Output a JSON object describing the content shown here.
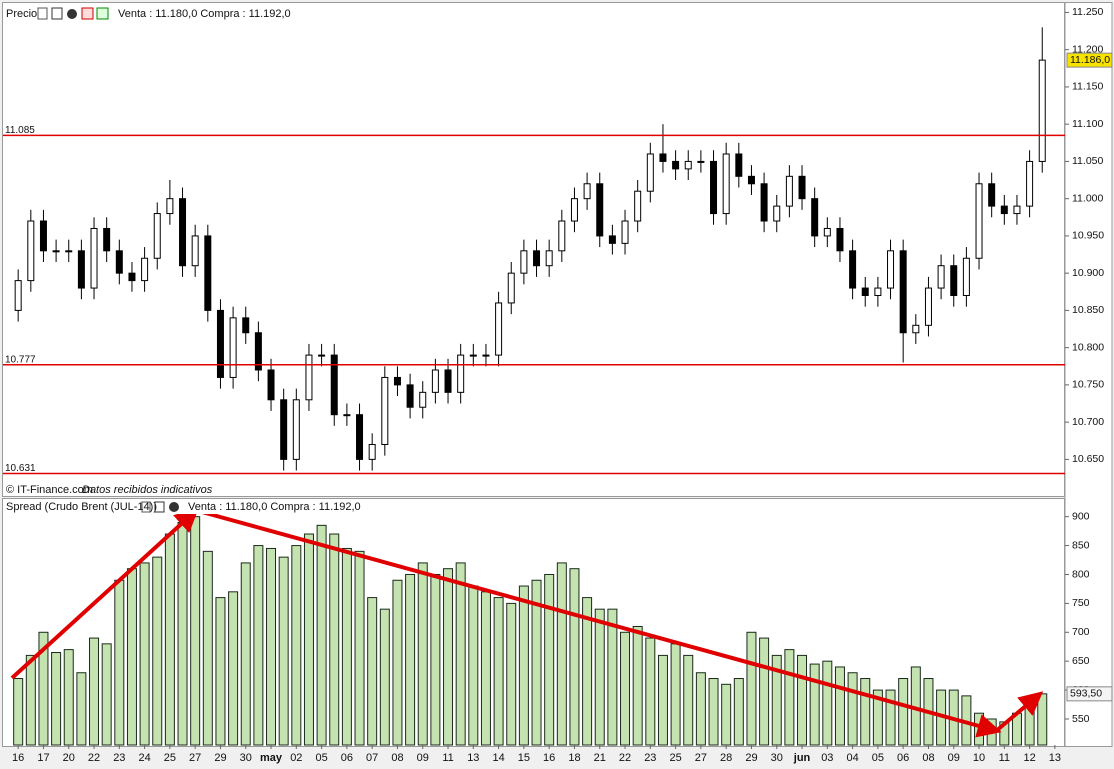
{
  "chart_data": [
    {
      "type": "candlestick",
      "title": "Precio",
      "quote": "Venta : 11.180,0 Compra : 11.192,0",
      "source": "© IT-Finance.com",
      "note": "Datos recibidos indicativos",
      "x": [
        0,
        0.5,
        1,
        1.5,
        2,
        2.5,
        3,
        3.5,
        4,
        4.5,
        5,
        5.5,
        6,
        6.5,
        7,
        7.5,
        8,
        8.5,
        9,
        9.5,
        10,
        10.5,
        11,
        11.5,
        12,
        12.5,
        13,
        13.5,
        14,
        14.5,
        15,
        15.5,
        16,
        16.5,
        17,
        17.5,
        18,
        18.5,
        19,
        19.5,
        20,
        20.5,
        21,
        21.5,
        22,
        22.5,
        23,
        23.5,
        24,
        24.5,
        25,
        25.5,
        26,
        26.5,
        27,
        27.5,
        28,
        28.5,
        29,
        29.5,
        30,
        30.5,
        31,
        31.5,
        32,
        32.5,
        33,
        33.5,
        34,
        34.5,
        35,
        35.5,
        36,
        36.5,
        37,
        37.5,
        38,
        38.5,
        39,
        39.5,
        40,
        40.5
      ],
      "open": [
        10850,
        10890,
        10970,
        10930,
        10930,
        10930,
        10880,
        10960,
        10930,
        10900,
        10890,
        10920,
        10980,
        11000,
        10910,
        10950,
        10850,
        10760,
        10840,
        10820,
        10770,
        10730,
        10650,
        10730,
        10790,
        10790,
        10710,
        10710,
        10650,
        10670,
        10760,
        10750,
        10720,
        10740,
        10770,
        10740,
        10790,
        10790,
        10790,
        10860,
        10900,
        10930,
        10910,
        10930,
        10970,
        11000,
        11020,
        10950,
        10940,
        10970,
        11010,
        11060,
        11050,
        11040,
        11050,
        11050,
        10980,
        11060,
        11030,
        11020,
        10970,
        10990,
        11030,
        11000,
        10950,
        10960,
        10930,
        10880,
        10870,
        10880,
        10930,
        10820,
        10830,
        10880,
        10910,
        10870,
        10920,
        11020,
        10990,
        10980,
        10990,
        11050
      ],
      "high": [
        10905,
        10985,
        10985,
        10945,
        10945,
        10945,
        10975,
        10975,
        10945,
        10915,
        10935,
        10995,
        11025,
        11015,
        10965,
        10965,
        10865,
        10855,
        10855,
        10835,
        10785,
        10745,
        10745,
        10805,
        10805,
        10805,
        10725,
        10725,
        10685,
        10775,
        10775,
        10765,
        10755,
        10785,
        10785,
        10805,
        10805,
        10805,
        10875,
        10915,
        10945,
        10945,
        10945,
        10985,
        11015,
        11035,
        11035,
        10965,
        10985,
        11025,
        11075,
        11100,
        11065,
        11065,
        11065,
        11065,
        11075,
        11075,
        11045,
        11035,
        11005,
        11045,
        11045,
        11015,
        10975,
        10975,
        10945,
        10895,
        10895,
        10945,
        10945,
        10845,
        10895,
        10925,
        10925,
        10935,
        11035,
        11035,
        11005,
        11005,
        11065,
        11230
      ],
      "low": [
        10835,
        10875,
        10915,
        10915,
        10915,
        10865,
        10865,
        10915,
        10885,
        10875,
        10875,
        10905,
        10965,
        10895,
        10895,
        10835,
        10745,
        10745,
        10805,
        10755,
        10715,
        10635,
        10635,
        10715,
        10775,
        10695,
        10695,
        10635,
        10635,
        10655,
        10735,
        10705,
        10705,
        10725,
        10725,
        10725,
        10775,
        10775,
        10775,
        10845,
        10885,
        10895,
        10895,
        10915,
        10955,
        10985,
        10935,
        10925,
        10925,
        10955,
        10995,
        11035,
        11025,
        11025,
        11035,
        10965,
        10965,
        11015,
        11005,
        10955,
        10955,
        10975,
        10985,
        10935,
        10935,
        10915,
        10865,
        10855,
        10855,
        10865,
        10780,
        10805,
        10815,
        10865,
        10855,
        10855,
        10905,
        10975,
        10965,
        10965,
        10975,
        11035
      ],
      "close": [
        10890,
        10970,
        10930,
        10930,
        10930,
        10880,
        10960,
        10930,
        10900,
        10890,
        10920,
        10980,
        11000,
        10910,
        10950,
        10850,
        10760,
        10840,
        10820,
        10770,
        10730,
        10650,
        10730,
        10790,
        10790,
        10710,
        10710,
        10650,
        10670,
        10760,
        10750,
        10720,
        10740,
        10770,
        10740,
        10790,
        10790,
        10790,
        10860,
        10900,
        10930,
        10910,
        10930,
        10970,
        11000,
        11020,
        10950,
        10940,
        10970,
        11010,
        11060,
        11050,
        11040,
        11050,
        11050,
        10980,
        11060,
        11030,
        11020,
        10970,
        10990,
        11030,
        11000,
        10950,
        10960,
        10930,
        10880,
        10870,
        10880,
        10930,
        10820,
        10830,
        10880,
        10910,
        10870,
        10920,
        11020,
        10990,
        10980,
        10990,
        11050,
        11186
      ],
      "up_color": "#ffffff",
      "down_color": "#000000",
      "level_color": "#e00000",
      "xlim": [
        -0.6,
        41.4
      ],
      "ylim": [
        10625,
        11260
      ],
      "yticks": [
        {
          "value": 10650,
          "label": "10.650"
        },
        {
          "value": 10700,
          "label": "10.700"
        },
        {
          "value": 10750,
          "label": "10.750"
        },
        {
          "value": 10800,
          "label": "10.800"
        },
        {
          "value": 10850,
          "label": "10.850"
        },
        {
          "value": 10900,
          "label": "10.900"
        },
        {
          "value": 10950,
          "label": "10.950"
        },
        {
          "value": 11000,
          "label": "11.000"
        },
        {
          "value": 11050,
          "label": "11.050"
        },
        {
          "value": 11100,
          "label": "11.100"
        },
        {
          "value": 11150,
          "label": "11.150"
        },
        {
          "value": 11200,
          "label": "11.200"
        },
        {
          "value": 11250,
          "label": "11.250"
        }
      ],
      "levels": [
        {
          "value": 11085,
          "label": "11.085"
        },
        {
          "value": 10777,
          "label": "10.777"
        },
        {
          "value": 10631,
          "label": "10.631"
        }
      ],
      "last": {
        "value": 11186,
        "label": "11.186,0"
      }
    },
    {
      "type": "bar",
      "title": "Spread (Crudo Brent (JUL-14))",
      "quote": "Venta : 11.180,0 Compra : 11.192,0",
      "x": [
        0,
        0.5,
        1,
        1.5,
        2,
        2.5,
        3,
        3.5,
        4,
        4.5,
        5,
        5.5,
        6,
        6.5,
        7,
        7.5,
        8,
        8.5,
        9,
        9.5,
        10,
        10.5,
        11,
        11.5,
        12,
        12.5,
        13,
        13.5,
        14,
        14.5,
        15,
        15.5,
        16,
        16.5,
        17,
        17.5,
        18,
        18.5,
        19,
        19.5,
        20,
        20.5,
        21,
        21.5,
        22,
        22.5,
        23,
        23.5,
        24,
        24.5,
        25,
        25.5,
        26,
        26.5,
        27,
        27.5,
        28,
        28.5,
        29,
        29.5,
        30,
        30.5,
        31,
        31.5,
        32,
        32.5,
        33,
        33.5,
        34,
        34.5,
        35,
        35.5,
        36,
        36.5,
        37,
        37.5,
        38,
        38.5,
        39,
        39.5,
        40,
        40.5
      ],
      "values": [
        620,
        660,
        700,
        665,
        670,
        630,
        690,
        680,
        790,
        810,
        820,
        830,
        870,
        890,
        900,
        840,
        760,
        770,
        820,
        850,
        845,
        830,
        850,
        870,
        885,
        870,
        845,
        840,
        760,
        740,
        790,
        800,
        820,
        800,
        810,
        820,
        780,
        770,
        760,
        750,
        780,
        790,
        800,
        820,
        810,
        760,
        740,
        740,
        700,
        710,
        690,
        660,
        680,
        660,
        630,
        620,
        610,
        620,
        700,
        690,
        660,
        670,
        660,
        645,
        650,
        640,
        630,
        620,
        600,
        600,
        620,
        640,
        620,
        600,
        600,
        590,
        560,
        550,
        545,
        560,
        575,
        593.5
      ],
      "color": "#c4e3b0",
      "xlim": [
        -0.6,
        41.4
      ],
      "ylim": [
        505,
        915
      ],
      "yticks": [
        550,
        600,
        650,
        700,
        750,
        800,
        850,
        900
      ],
      "xticks": [
        {
          "value": 0,
          "label": "16"
        },
        {
          "value": 1,
          "label": "17"
        },
        {
          "value": 2,
          "label": "20"
        },
        {
          "value": 3,
          "label": "22"
        },
        {
          "value": 4,
          "label": "23"
        },
        {
          "value": 5,
          "label": "24"
        },
        {
          "value": 6,
          "label": "25"
        },
        {
          "value": 7,
          "label": "27"
        },
        {
          "value": 8,
          "label": "29"
        },
        {
          "value": 9,
          "label": "30"
        },
        {
          "value": 10,
          "label": "may"
        },
        {
          "value": 11,
          "label": "02"
        },
        {
          "value": 12,
          "label": "05"
        },
        {
          "value": 13,
          "label": "06"
        },
        {
          "value": 14,
          "label": "07"
        },
        {
          "value": 15,
          "label": "08"
        },
        {
          "value": 16,
          "label": "09"
        },
        {
          "value": 17,
          "label": "11"
        },
        {
          "value": 18,
          "label": "13"
        },
        {
          "value": 19,
          "label": "14"
        },
        {
          "value": 20,
          "label": "15"
        },
        {
          "value": 21,
          "label": "16"
        },
        {
          "value": 22,
          "label": "18"
        },
        {
          "value": 23,
          "label": "21"
        },
        {
          "value": 24,
          "label": "22"
        },
        {
          "value": 25,
          "label": "23"
        },
        {
          "value": 26,
          "label": "25"
        },
        {
          "value": 27,
          "label": "27"
        },
        {
          "value": 28,
          "label": "28"
        },
        {
          "value": 29,
          "label": "29"
        },
        {
          "value": 30,
          "label": "30"
        },
        {
          "value": 31,
          "label": "jun"
        },
        {
          "value": 32,
          "label": "03"
        },
        {
          "value": 33,
          "label": "04"
        },
        {
          "value": 34,
          "label": "05"
        },
        {
          "value": 35,
          "label": "06"
        },
        {
          "value": 36,
          "label": "08"
        },
        {
          "value": 37,
          "label": "09"
        },
        {
          "value": 38,
          "label": "10"
        },
        {
          "value": 39,
          "label": "11"
        },
        {
          "value": 40,
          "label": "12"
        },
        {
          "value": 41,
          "label": "13"
        }
      ],
      "last": {
        "value": 593.5,
        "label": "593,50"
      }
    }
  ]
}
